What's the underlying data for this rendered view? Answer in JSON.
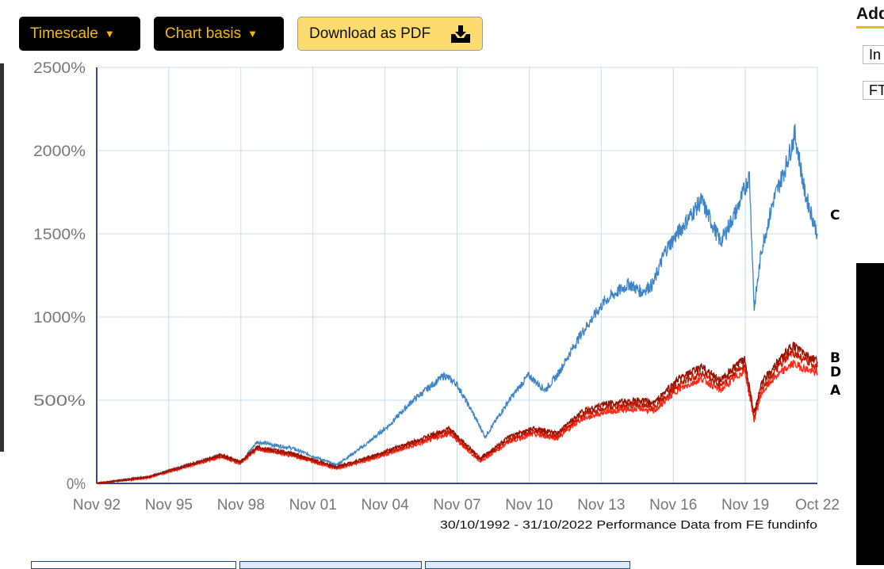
{
  "toolbar": {
    "timescale_label": "Timescale",
    "chart_basis_label": "Chart basis",
    "download_label": "Download as PDF"
  },
  "sidebar": {
    "title": "Add",
    "items": [
      "In",
      "FT"
    ]
  },
  "chart_data": {
    "type": "line",
    "ylim": [
      0,
      2500
    ],
    "yticks": [
      "0%",
      "500%",
      "1000%",
      "1500%",
      "2000%",
      "2500%"
    ],
    "ytick_values": [
      0,
      500,
      1000,
      1500,
      2000,
      2500
    ],
    "xticks": [
      "Nov 92",
      "Nov 95",
      "Nov 98",
      "Nov 01",
      "Nov 04",
      "Nov 07",
      "Nov 10",
      "Nov 13",
      "Nov 16",
      "Nov 19",
      "Oct 22"
    ],
    "xtick_values": [
      1992.83,
      1995.83,
      1998.83,
      2001.83,
      2004.83,
      2007.83,
      2010.83,
      2013.83,
      2016.83,
      2019.83,
      2022.83
    ],
    "xlim": [
      1992.83,
      2022.83
    ],
    "grid": true,
    "footnote": "30/10/1992 - 31/10/2022 Performance Data from FE fundinfo",
    "series": [
      {
        "name": "C",
        "color": "#3d85c6",
        "x": [
          1992.83,
          1995,
          1998,
          1998.8,
          1999.5,
          2001,
          2002.8,
          2004,
          2005,
          2006,
          2007.3,
          2007.8,
          2008.5,
          2009.0,
          2010,
          2010.8,
          2011.5,
          2012,
          2013,
          2014,
          2015,
          2015.5,
          2016,
          2016.5,
          2017,
          2018,
          2018.8,
          2019.5,
          2020.0,
          2020.2,
          2020.5,
          2021,
          2021.5,
          2021.9,
          2022.3,
          2022.83
        ],
        "y": [
          0,
          40,
          170,
          120,
          250,
          210,
          110,
          230,
          350,
          500,
          650,
          600,
          420,
          280,
          500,
          650,
          560,
          650,
          900,
          1100,
          1200,
          1150,
          1200,
          1400,
          1500,
          1700,
          1450,
          1650,
          1850,
          1050,
          1400,
          1700,
          1900,
          2100,
          1750,
          1500
        ]
      },
      {
        "name": "B",
        "color": "#9b1200",
        "x": [
          1992.83,
          1995,
          1998,
          1998.8,
          1999.5,
          2001,
          2002.8,
          2004,
          2006,
          2007.5,
          2008.8,
          2010,
          2011,
          2012,
          2013,
          2014,
          2015.5,
          2016,
          2017,
          2018,
          2018.8,
          2019.8,
          2020.2,
          2020.5,
          2021,
          2021.8,
          2022.3,
          2022.83
        ],
        "y": [
          0,
          40,
          170,
          130,
          220,
          180,
          100,
          150,
          250,
          330,
          150,
          280,
          330,
          300,
          430,
          480,
          500,
          480,
          620,
          700,
          620,
          750,
          420,
          600,
          700,
          830,
          780,
          730
        ]
      },
      {
        "name": "D",
        "color": "#c41a00",
        "x": [
          1992.83,
          1995,
          1998,
          1998.8,
          1999.5,
          2001,
          2002.8,
          2004,
          2006,
          2007.5,
          2008.8,
          2010,
          2011,
          2012,
          2013,
          2014,
          2015.5,
          2016,
          2017,
          2018,
          2018.8,
          2019.8,
          2020.2,
          2020.5,
          2021,
          2021.8,
          2022.3,
          2022.83
        ],
        "y": [
          0,
          38,
          165,
          125,
          212,
          172,
          94,
          143,
          238,
          315,
          140,
          265,
          312,
          284,
          408,
          455,
          475,
          455,
          590,
          665,
          590,
          715,
          400,
          570,
          665,
          790,
          740,
          700
        ]
      },
      {
        "name": "A",
        "color": "#ff2a1a",
        "x": [
          1992.83,
          1995,
          1998,
          1998.8,
          1999.5,
          2001,
          2002.8,
          2004,
          2006,
          2007.5,
          2008.8,
          2010,
          2011,
          2012,
          2013,
          2014,
          2015.5,
          2016,
          2017,
          2018,
          2018.8,
          2019.8,
          2020.2,
          2020.5,
          2021,
          2021.8,
          2022.3,
          2022.83
        ],
        "y": [
          0,
          35,
          160,
          120,
          205,
          165,
          88,
          135,
          225,
          300,
          130,
          250,
          295,
          270,
          385,
          430,
          450,
          430,
          560,
          630,
          560,
          680,
          380,
          540,
          630,
          720,
          690,
          660
        ]
      }
    ]
  }
}
